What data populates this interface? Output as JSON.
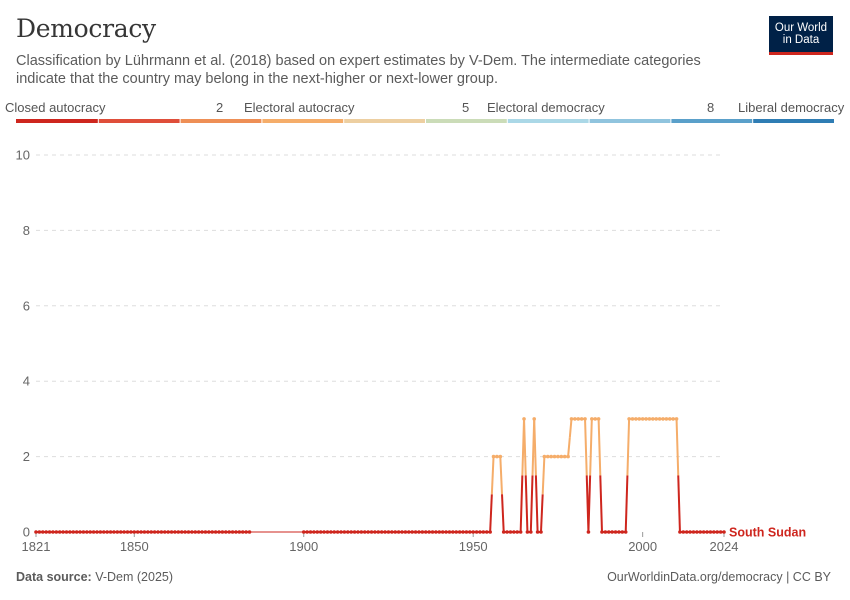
{
  "header": {
    "title": "Democracy",
    "subtitle": "Classification by Lührmann et al. (2018) based on expert estimates by V-Dem. The intermediate categories indicate that the country may belong in the next-higher or next-lower group.",
    "logo_line1": "Our World",
    "logo_line2": "in Data"
  },
  "legend": {
    "labels": [
      "Closed autocracy",
      "2",
      "Electoral autocracy",
      "5",
      "Electoral democracy",
      "8",
      "Liberal democracy"
    ],
    "colors": [
      "#ce261e",
      "#df4e3a",
      "#ee8f56",
      "#f5ad6a",
      "#edcfa1",
      "#cbdcb8",
      "#abd8e7",
      "#90c4de",
      "#5aa0ca",
      "#2f7db4"
    ]
  },
  "footer": {
    "source_label": "Data source:",
    "source_value": "V-Dem (2025)",
    "url": "OurWorldinData.org/democracy | CC BY"
  },
  "chart_data": {
    "type": "line",
    "title": "Democracy",
    "xlabel": "",
    "ylabel": "",
    "xlim": [
      1821,
      2024
    ],
    "ylim": [
      0,
      10
    ],
    "y_ticks": [
      0,
      2,
      4,
      6,
      8,
      10
    ],
    "x_ticks": [
      1821,
      1850,
      1900,
      1950,
      2000,
      2024
    ],
    "series_label": "South Sudan",
    "series_color": "#ce261e",
    "series": [
      {
        "name": "South Sudan",
        "segments": [
          {
            "x_start": 1821,
            "x_end": 1884,
            "value": 0
          },
          {
            "x_start": 1900,
            "x_end": 1955,
            "value": 0
          },
          {
            "x_start": 1956,
            "x_end": 1958,
            "value": 2
          },
          {
            "x_start": 1959,
            "x_end": 1964,
            "value": 0
          },
          {
            "x_start": 1965,
            "x_end": 1965,
            "value": 3
          },
          {
            "x_start": 1966,
            "x_end": 1967,
            "value": 0
          },
          {
            "x_start": 1968,
            "x_end": 1968,
            "value": 3
          },
          {
            "x_start": 1969,
            "x_end": 1970,
            "value": 0
          },
          {
            "x_start": 1971,
            "x_end": 1978,
            "value": 2
          },
          {
            "x_start": 1979,
            "x_end": 1983,
            "value": 3
          },
          {
            "x_start": 1984,
            "x_end": 1984,
            "value": 0
          },
          {
            "x_start": 1985,
            "x_end": 1987,
            "value": 3
          },
          {
            "x_start": 1988,
            "x_end": 1995,
            "value": 0
          },
          {
            "x_start": 1996,
            "x_end": 2010,
            "value": 3
          },
          {
            "x_start": 2011,
            "x_end": 2024,
            "value": 0
          }
        ]
      }
    ]
  }
}
